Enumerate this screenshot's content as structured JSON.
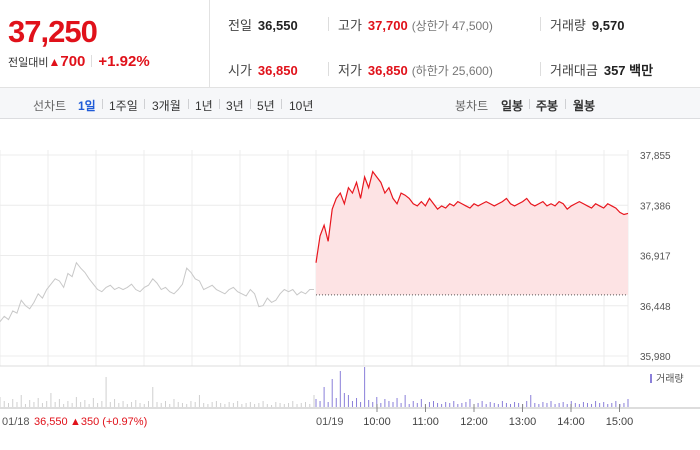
{
  "quote": {
    "price": "37,250",
    "change_label": "전일대비",
    "change_arrow": "▲",
    "change_value": "700",
    "change_percent": "+1.92%"
  },
  "stats": {
    "prev_label": "전일",
    "prev_value": "36,550",
    "high_label": "고가",
    "high_value": "37,700",
    "upper_limit": "(상한가 47,500)",
    "volume_label": "거래량",
    "volume_value": "9,570",
    "open_label": "시가",
    "open_value": "36,850",
    "low_label": "저가",
    "low_value": "36,850",
    "lower_limit": "(하한가 25,600)",
    "amount_label": "거래대금",
    "amount_value": "357 백만"
  },
  "period_bar": {
    "line_title": "선차트",
    "line_periods": [
      "1일",
      "1주일",
      "3개월",
      "1년",
      "3년",
      "5년",
      "10년"
    ],
    "active_index": 0,
    "candle_title": "봉차트",
    "candle_periods": [
      "일봉",
      "주봉",
      "월봉"
    ]
  },
  "chart_data": {
    "type": "line",
    "y_ticks": [
      "37,855",
      "37,386",
      "36,917",
      "36,448",
      "35,980"
    ],
    "ylim": [
      35980,
      37855
    ],
    "prev_day_date": "01/18",
    "prev_day_close": "36,550",
    "prev_day_change": "▲350 (+0.97%)",
    "today_date": "01/19",
    "time_ticks": [
      "10:00",
      "11:00",
      "12:00",
      "13:00",
      "14:00",
      "15:00"
    ],
    "volume_legend": "거래량",
    "prev_series_color": "#c8c8c8",
    "today_series_color": "#e8161e",
    "today_fill_color": "#fde3e4",
    "volume_color": "#8a7fd9",
    "baseline_value": 36550,
    "prev_day_series": [
      36300,
      36350,
      36320,
      36400,
      36380,
      36500,
      36450,
      36420,
      36480,
      36560,
      36520,
      36600,
      36650,
      36700,
      36680,
      36620,
      36750,
      36720,
      36850,
      36800,
      36760,
      36700,
      36650,
      36600,
      36580,
      36620,
      36640,
      36600,
      36620,
      36600,
      36620,
      36650,
      36600,
      36580,
      36620,
      36640,
      36700,
      36660,
      36600,
      36620,
      36580,
      36560,
      36600,
      36650,
      36800,
      36760,
      36700,
      36680,
      36600,
      36620,
      36640,
      36600,
      36580,
      36560,
      36600,
      36620,
      36580,
      36560,
      36540,
      36600,
      36560,
      36440,
      36450,
      36520,
      36480,
      36500,
      36560,
      36600,
      36580,
      36600,
      36550,
      36580,
      36560,
      36600,
      36600
    ],
    "today_series": [
      36850,
      37100,
      37200,
      37050,
      37350,
      37450,
      37500,
      37400,
      37550,
      37500,
      37600,
      37450,
      37650,
      37550,
      37700,
      37650,
      37600,
      37500,
      37550,
      37450,
      37400,
      37500,
      37480,
      37450,
      37400,
      37380,
      37420,
      37380,
      37450,
      37400,
      37350,
      37380,
      37360,
      37400,
      37380,
      37420,
      37400,
      37380,
      37360,
      37400,
      37380,
      37400,
      37420,
      37400,
      37380,
      37400,
      37420,
      37450,
      37400,
      37380,
      37400,
      37420,
      37450,
      37400,
      37380,
      37400,
      37420,
      37380,
      37400,
      37380,
      37420,
      37400,
      37350,
      37380,
      37400,
      37420,
      37400,
      37380,
      37360,
      37400,
      37380,
      37360,
      37400,
      37380,
      37360,
      37320,
      37300,
      37310
    ],
    "prev_volume": [
      10,
      6,
      4,
      8,
      5,
      12,
      3,
      7,
      5,
      9,
      4,
      6,
      14,
      5,
      8,
      3,
      6,
      4,
      10,
      5,
      7,
      3,
      9,
      4,
      6,
      30,
      5,
      8,
      4,
      6,
      3,
      5,
      7,
      4,
      3,
      6,
      20,
      5,
      4,
      6,
      3,
      8,
      5,
      4,
      3,
      6,
      5,
      12,
      4,
      3,
      5,
      6,
      4,
      3,
      5,
      4,
      6,
      3,
      4,
      5,
      3,
      4,
      6,
      3,
      2,
      5,
      4,
      3,
      4,
      6,
      3,
      4,
      5,
      3,
      12
    ],
    "today_volume": [
      8,
      6,
      20,
      5,
      28,
      9,
      36,
      14,
      12,
      6,
      9,
      5,
      40,
      7,
      5,
      10,
      4,
      8,
      6,
      5,
      9,
      4,
      12,
      3,
      6,
      4,
      8,
      3,
      5,
      6,
      4,
      3,
      5,
      4,
      6,
      3,
      4,
      5,
      8,
      3,
      4,
      6,
      3,
      5,
      4,
      3,
      6,
      4,
      3,
      5,
      4,
      3,
      6,
      12,
      4,
      3,
      5,
      4,
      6,
      3,
      4,
      5,
      3,
      6,
      4,
      3,
      5,
      4,
      3,
      6,
      4,
      5,
      3,
      4,
      6,
      3,
      4,
      8
    ]
  }
}
